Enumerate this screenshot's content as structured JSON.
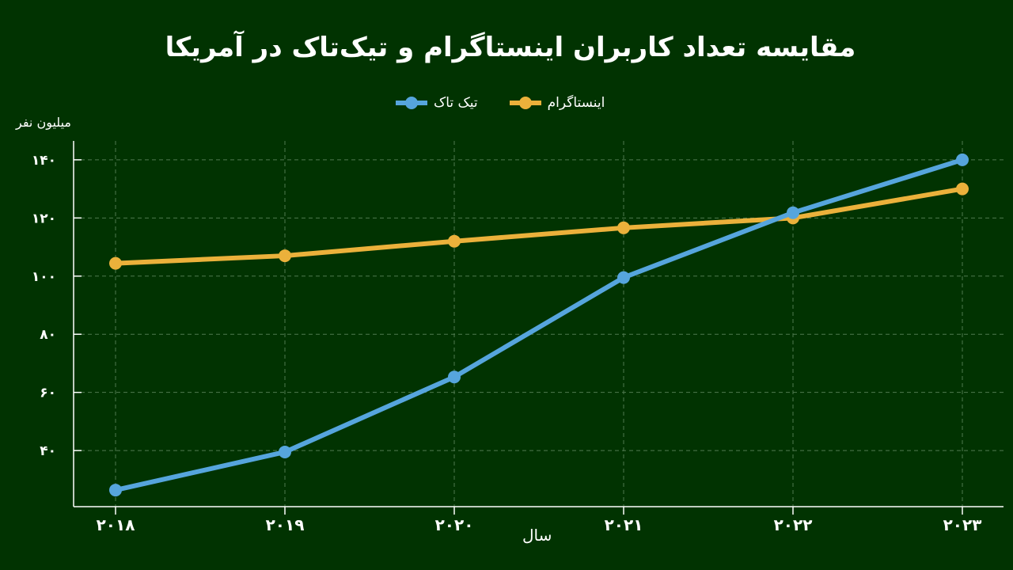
{
  "chart_data": {
    "type": "line",
    "title": "مقایسه تعداد کاربران اینستاگرام و تیک‌تاک در آمریکا",
    "xlabel": "سال",
    "ylabel": "میلیون نفر",
    "categories": [
      "۲۰۱۸",
      "۲۰۱۹",
      "۲۰۲۰",
      "۲۰۲۱",
      "۲۰۲۲",
      "۲۰۲۳"
    ],
    "yticks": [
      40,
      60,
      80,
      100,
      120,
      140
    ],
    "ytick_labels": [
      "۴۰",
      "۶۰",
      "۸۰",
      "۱۰۰",
      "۱۲۰",
      "۱۴۰"
    ],
    "ylim": [
      20.7,
      146.5
    ],
    "grid": true,
    "legend_position": "top-center",
    "series": [
      {
        "name": "اینستاگرام",
        "color": "#ebb13b",
        "values": [
          104.4,
          107,
          112,
          116.6,
          120,
          130
        ]
      },
      {
        "name": "تیک تاک",
        "color": "#56a5dd",
        "values": [
          26.4,
          39.5,
          65.3,
          99.5,
          121.8,
          140
        ]
      }
    ]
  }
}
